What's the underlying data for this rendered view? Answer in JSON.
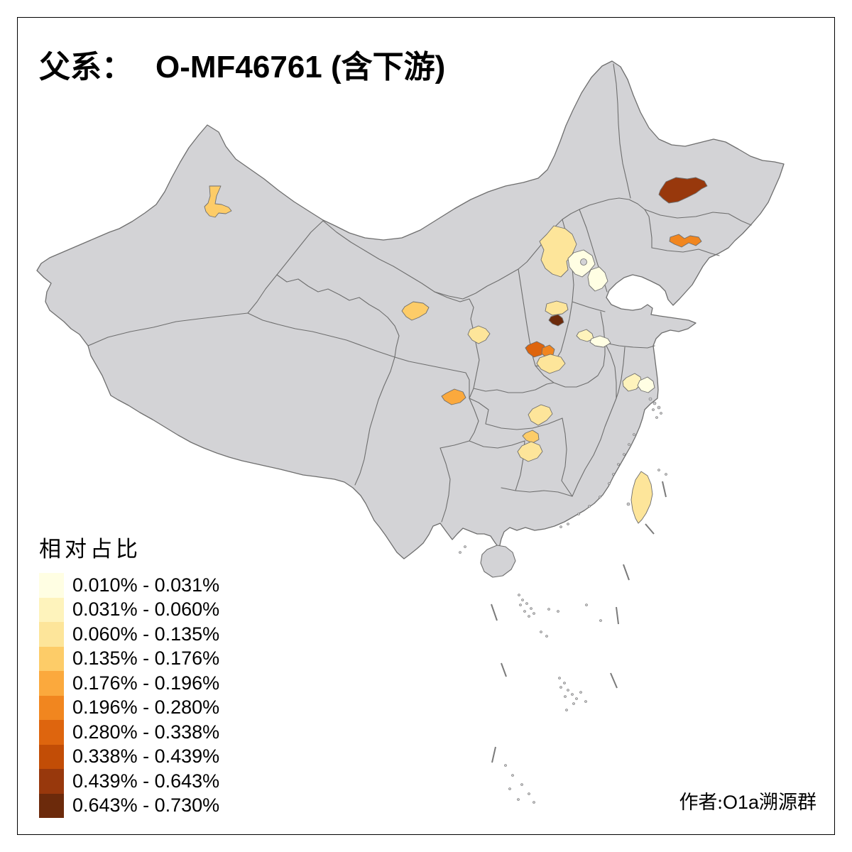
{
  "title": {
    "prefix_zh": "父系：",
    "value": "O-MF46761 (含下游)"
  },
  "legend": {
    "title": "相对占比",
    "bins": [
      {
        "label": "0.010% - 0.031%",
        "color": "#FFFEE3"
      },
      {
        "label": "0.031% - 0.060%",
        "color": "#FEF3BC"
      },
      {
        "label": "0.060% - 0.135%",
        "color": "#FDE59A"
      },
      {
        "label": "0.135% - 0.176%",
        "color": "#FDCC68"
      },
      {
        "label": "0.176% - 0.196%",
        "color": "#FBA93D"
      },
      {
        "label": "0.196% - 0.280%",
        "color": "#F1861F"
      },
      {
        "label": "0.280% - 0.338%",
        "color": "#DE650E"
      },
      {
        "label": "0.338% - 0.439%",
        "color": "#C24D06"
      },
      {
        "label": "0.439% - 0.643%",
        "color": "#98380C"
      },
      {
        "label": "0.643% - 0.730%",
        "color": "#6C2A0B"
      }
    ]
  },
  "attribution": {
    "prefix_zh": "作者:",
    "group_latin": "O1a",
    "suffix_zh": "溯源群"
  },
  "map": {
    "base_fill": "#d3d3d6",
    "border_color": "#6e6e6e",
    "sea_color": "#ffffff",
    "regions": [
      {
        "id": "northwest-region",
        "bin": 4
      },
      {
        "id": "northeast-upper-region",
        "bin": 9
      },
      {
        "id": "northeast-lower-region",
        "bin": 6
      },
      {
        "id": "north-region-1",
        "bin": 3
      },
      {
        "id": "north-region-2",
        "bin": 1
      },
      {
        "id": "north-region-3",
        "bin": 1
      },
      {
        "id": "north-central-region-1",
        "bin": 3
      },
      {
        "id": "north-central-region-2-dark",
        "bin": 10
      },
      {
        "id": "northwest-central-region",
        "bin": 4
      },
      {
        "id": "central-west-region",
        "bin": 3
      },
      {
        "id": "central-region-1",
        "bin": 7
      },
      {
        "id": "central-region-2",
        "bin": 6
      },
      {
        "id": "central-region-3",
        "bin": 3
      },
      {
        "id": "central-east-region-1",
        "bin": 2
      },
      {
        "id": "central-east-region-2",
        "bin": 1
      },
      {
        "id": "southwest-central-region",
        "bin": 5
      },
      {
        "id": "central-south-region-1",
        "bin": 3
      },
      {
        "id": "central-south-region-2",
        "bin": 4
      },
      {
        "id": "central-south-region-3",
        "bin": 3
      },
      {
        "id": "east-coast-region-1",
        "bin": 2
      },
      {
        "id": "east-coast-region-2",
        "bin": 1
      },
      {
        "id": "taiwan-island",
        "bin": 3
      }
    ]
  },
  "chart_data": {
    "type": "heatmap",
    "subtype": "choropleth-map-china-prefectures",
    "title": "父系： O-MF46761 (含下游)",
    "legend_title": "相对占比",
    "unit": "percent-relative-share",
    "legend_position": "bottom-left",
    "base_region_color": "#d3d3d6",
    "bins": [
      "0.010% - 0.031%",
      "0.031% - 0.060%",
      "0.060% - 0.135%",
      "0.135% - 0.176%",
      "0.176% - 0.196%",
      "0.196% - 0.280%",
      "0.280% - 0.338%",
      "0.338% - 0.439%",
      "0.439% - 0.643%",
      "0.643% - 0.730%"
    ],
    "regions": [
      {
        "id": "northwest-region",
        "value_range": "0.135% - 0.176%"
      },
      {
        "id": "northeast-upper-region",
        "value_range": "0.439% - 0.643%"
      },
      {
        "id": "northeast-lower-region",
        "value_range": "0.196% - 0.280%"
      },
      {
        "id": "north-region-1",
        "value_range": "0.060% - 0.135%"
      },
      {
        "id": "north-region-2",
        "value_range": "0.010% - 0.031%"
      },
      {
        "id": "north-region-3",
        "value_range": "0.010% - 0.031%"
      },
      {
        "id": "north-central-region-1",
        "value_range": "0.060% - 0.135%"
      },
      {
        "id": "north-central-region-2-dark",
        "value_range": "0.643% - 0.730%"
      },
      {
        "id": "northwest-central-region",
        "value_range": "0.135% - 0.176%"
      },
      {
        "id": "central-west-region",
        "value_range": "0.060% - 0.135%"
      },
      {
        "id": "central-region-1",
        "value_range": "0.280% - 0.338%"
      },
      {
        "id": "central-region-2",
        "value_range": "0.196% - 0.280%"
      },
      {
        "id": "central-region-3",
        "value_range": "0.060% - 0.135%"
      },
      {
        "id": "central-east-region-1",
        "value_range": "0.031% - 0.060%"
      },
      {
        "id": "central-east-region-2",
        "value_range": "0.010% - 0.031%"
      },
      {
        "id": "southwest-central-region",
        "value_range": "0.176% - 0.196%"
      },
      {
        "id": "central-south-region-1",
        "value_range": "0.060% - 0.135%"
      },
      {
        "id": "central-south-region-2",
        "value_range": "0.135% - 0.176%"
      },
      {
        "id": "central-south-region-3",
        "value_range": "0.060% - 0.135%"
      },
      {
        "id": "east-coast-region-1",
        "value_range": "0.031% - 0.060%"
      },
      {
        "id": "east-coast-region-2",
        "value_range": "0.010% - 0.031%"
      },
      {
        "id": "taiwan-island",
        "value_range": "0.060% - 0.135%"
      }
    ],
    "annotation": "作者:O1a溯源群"
  }
}
